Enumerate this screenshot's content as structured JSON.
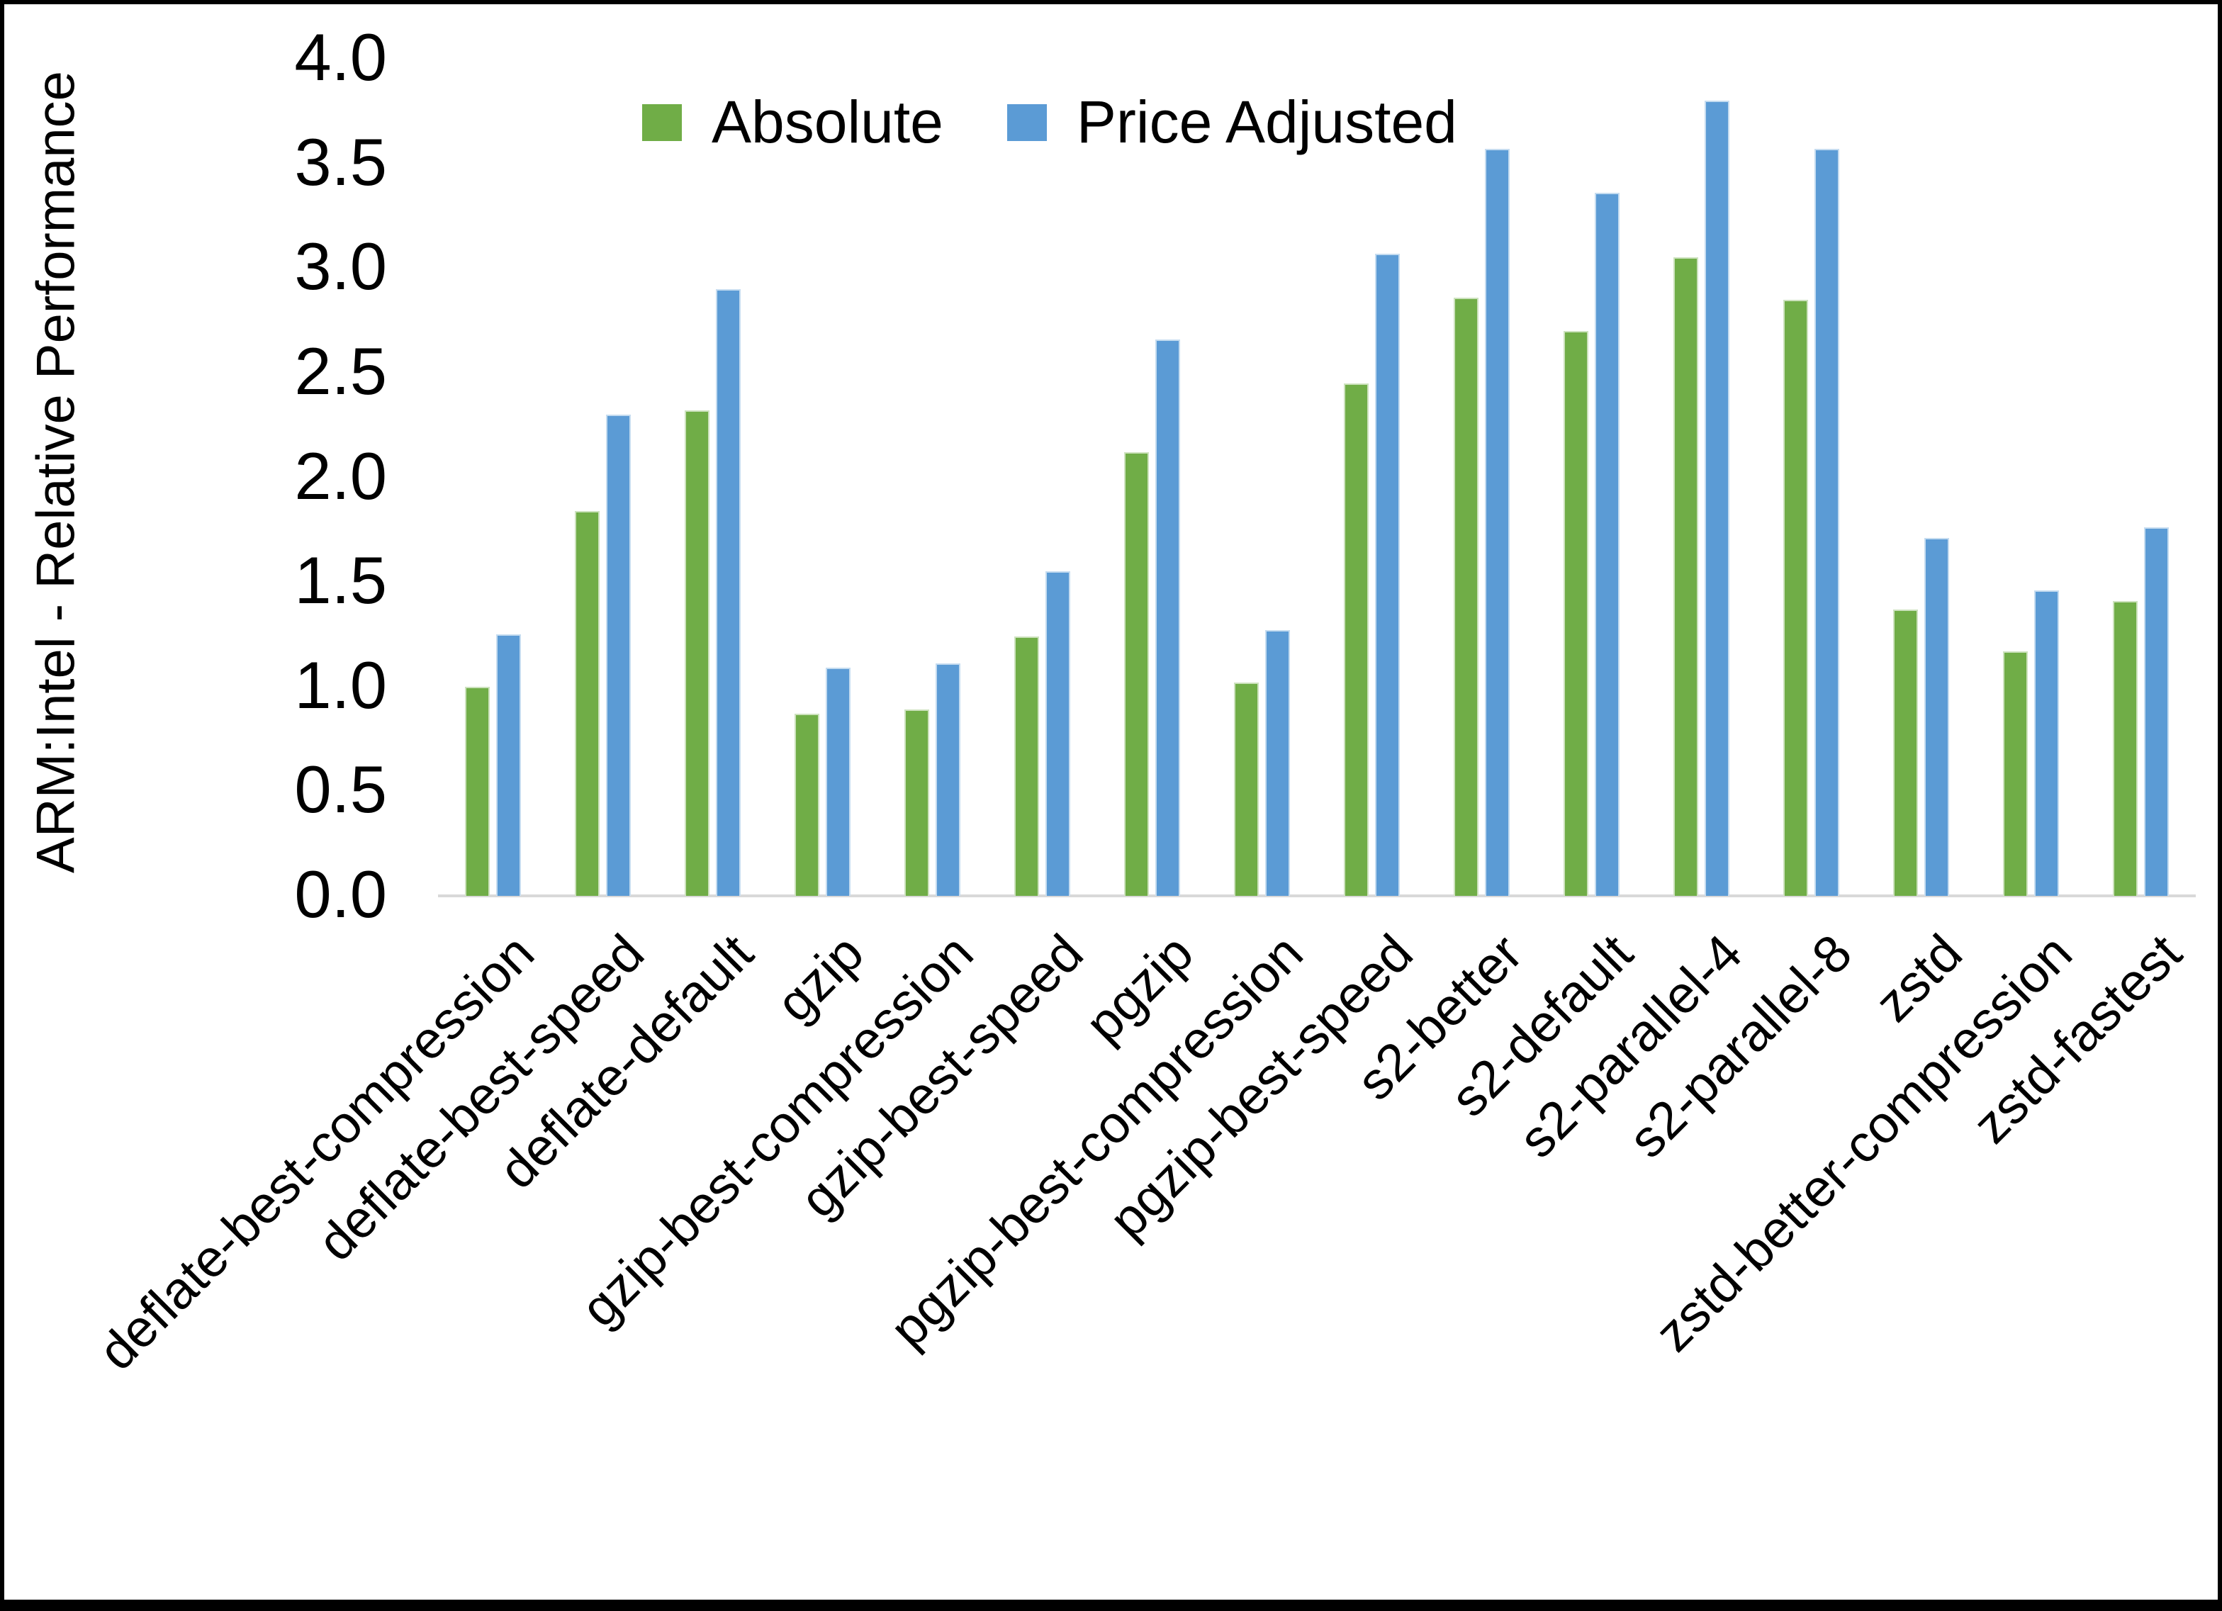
{
  "chart_data": {
    "type": "bar",
    "title": "",
    "xlabel": "",
    "ylabel": "ARM:Intel - Relative Performance",
    "ylim": [
      0.0,
      4.0
    ],
    "ytick_step": 0.5,
    "yticks": [
      "0.0",
      "0.5",
      "1.0",
      "1.5",
      "2.0",
      "2.5",
      "3.0",
      "3.5",
      "4.0"
    ],
    "grid": false,
    "legend_position": "top",
    "categories": [
      "deflate-best-compression",
      "deflate-best-speed",
      "deflate-default",
      "gzip",
      "gzip-best-compression",
      "gzip-best-speed",
      "pgzip",
      "pgzip-best-compression",
      "pgzip-best-speed",
      "s2-better",
      "s2-default",
      "s2-parallel-4",
      "s2-parallel-8",
      "zstd",
      "zstd-better-compression",
      "zstd-fastest"
    ],
    "series": [
      {
        "name": "Absolute",
        "color": "#70AD47",
        "values": [
          1.0,
          1.84,
          2.32,
          0.87,
          0.89,
          1.24,
          2.12,
          1.02,
          2.45,
          2.86,
          2.7,
          3.05,
          2.85,
          1.37,
          1.17,
          1.41
        ]
      },
      {
        "name": "Price Adjusted",
        "color": "#5B9BD5",
        "values": [
          1.25,
          2.3,
          2.9,
          1.09,
          1.11,
          1.55,
          2.66,
          1.27,
          3.07,
          3.57,
          3.36,
          3.8,
          3.57,
          1.71,
          1.46,
          1.76
        ]
      }
    ],
    "colors": {
      "axis_line": "#d9d9d9",
      "text": "#000000",
      "background": "#ffffff"
    }
  }
}
